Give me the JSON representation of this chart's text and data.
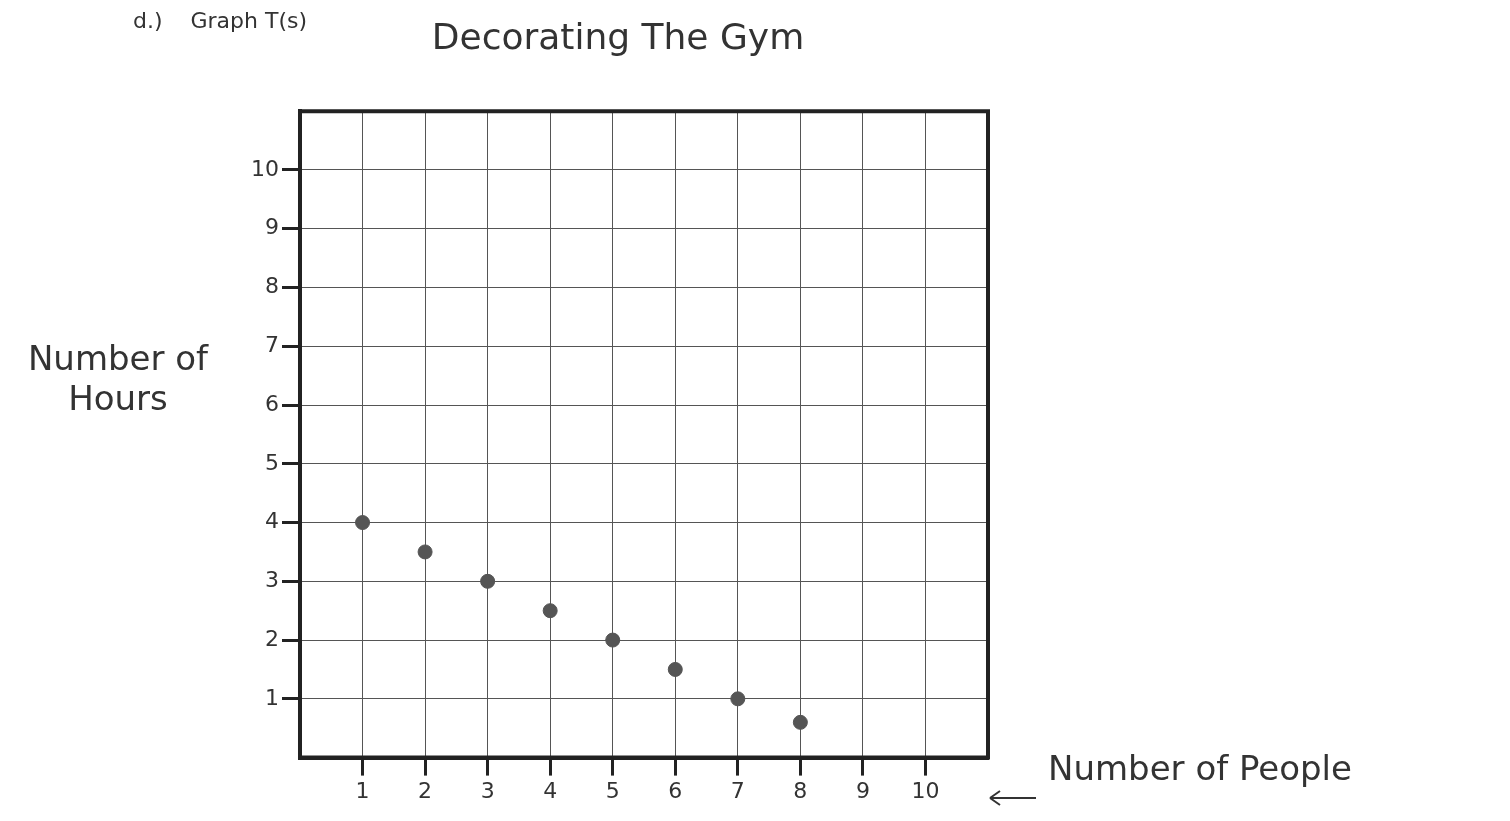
{
  "chart_data": {
    "type": "scatter",
    "title": "Decorating The Gym",
    "xlabel": "Number of People",
    "ylabel": "Number of Hours",
    "annotations": [
      "d.)    Graph T(s)"
    ],
    "x": [
      1,
      2,
      3,
      4,
      5,
      6,
      7,
      8
    ],
    "values": [
      4,
      3.5,
      3,
      2.5,
      2,
      1.5,
      1,
      0.6
    ],
    "color": "#555555",
    "marker": "circle",
    "xlim": [
      0,
      11
    ],
    "ylim": [
      0,
      11
    ],
    "xticks": [
      1,
      2,
      3,
      4,
      5,
      6,
      7,
      8,
      9,
      10
    ],
    "yticks": [
      1,
      2,
      3,
      4,
      5,
      6,
      7,
      8,
      9,
      10
    ],
    "grid": true
  }
}
